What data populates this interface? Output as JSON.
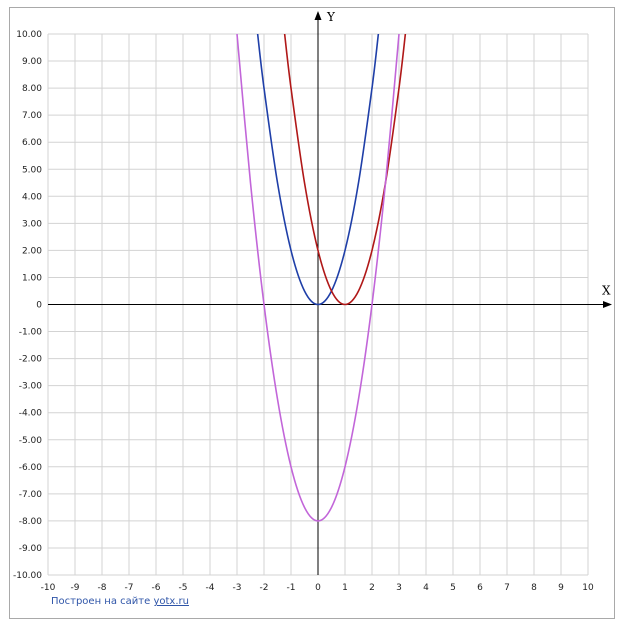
{
  "chart_data": {
    "type": "line",
    "xlabel": "X",
    "ylabel": "Y",
    "xlim": [
      -10,
      10
    ],
    "ylim": [
      -10,
      10
    ],
    "grid": true,
    "x_ticks": [
      "-10",
      "-9",
      "-8",
      "-7",
      "-6",
      "-5",
      "-4",
      "-3",
      "-2",
      "-1",
      "0",
      "1",
      "2",
      "3",
      "4",
      "5",
      "6",
      "7",
      "8",
      "9",
      "10"
    ],
    "y_ticks": [
      "10.00",
      "9.00",
      "8.00",
      "7.00",
      "6.00",
      "5.00",
      "4.00",
      "3.00",
      "2.00",
      "1.00",
      "0",
      "-1.00",
      "-2.00",
      "-3.00",
      "-4.00",
      "-5.00",
      "-6.00",
      "-7.00",
      "-8.00",
      "-9.00",
      "-10.00"
    ],
    "series": [
      {
        "color": "#1f3fa8",
        "x": [
          -2.24,
          -2,
          -1.5,
          -1,
          -0.5,
          0,
          0.5,
          1,
          1.5,
          2,
          2.24
        ],
        "y": [
          10.04,
          8,
          4.5,
          2,
          0.5,
          0,
          0.5,
          2,
          4.5,
          8,
          10.04
        ]
      },
      {
        "color": "#b01818",
        "x": [
          -1.24,
          -1,
          -0.5,
          0,
          0.5,
          1,
          1.5,
          2,
          2.5,
          3,
          3.24
        ],
        "y": [
          10.04,
          8,
          4.5,
          2,
          0.5,
          0,
          0.5,
          2,
          4.5,
          8,
          10.04
        ]
      },
      {
        "color": "#c266d9",
        "x": [
          -3,
          -2.5,
          -2,
          -1.5,
          -1,
          -0.5,
          0,
          0.5,
          1,
          1.5,
          2,
          2.5,
          3
        ],
        "y": [
          10,
          4.5,
          0,
          -3.5,
          -6,
          -7.5,
          -8,
          -7.5,
          -6,
          -3.5,
          0,
          4.5,
          10
        ]
      }
    ]
  },
  "credit": {
    "text": "Построен на сайте",
    "link": "yotx.ru"
  }
}
